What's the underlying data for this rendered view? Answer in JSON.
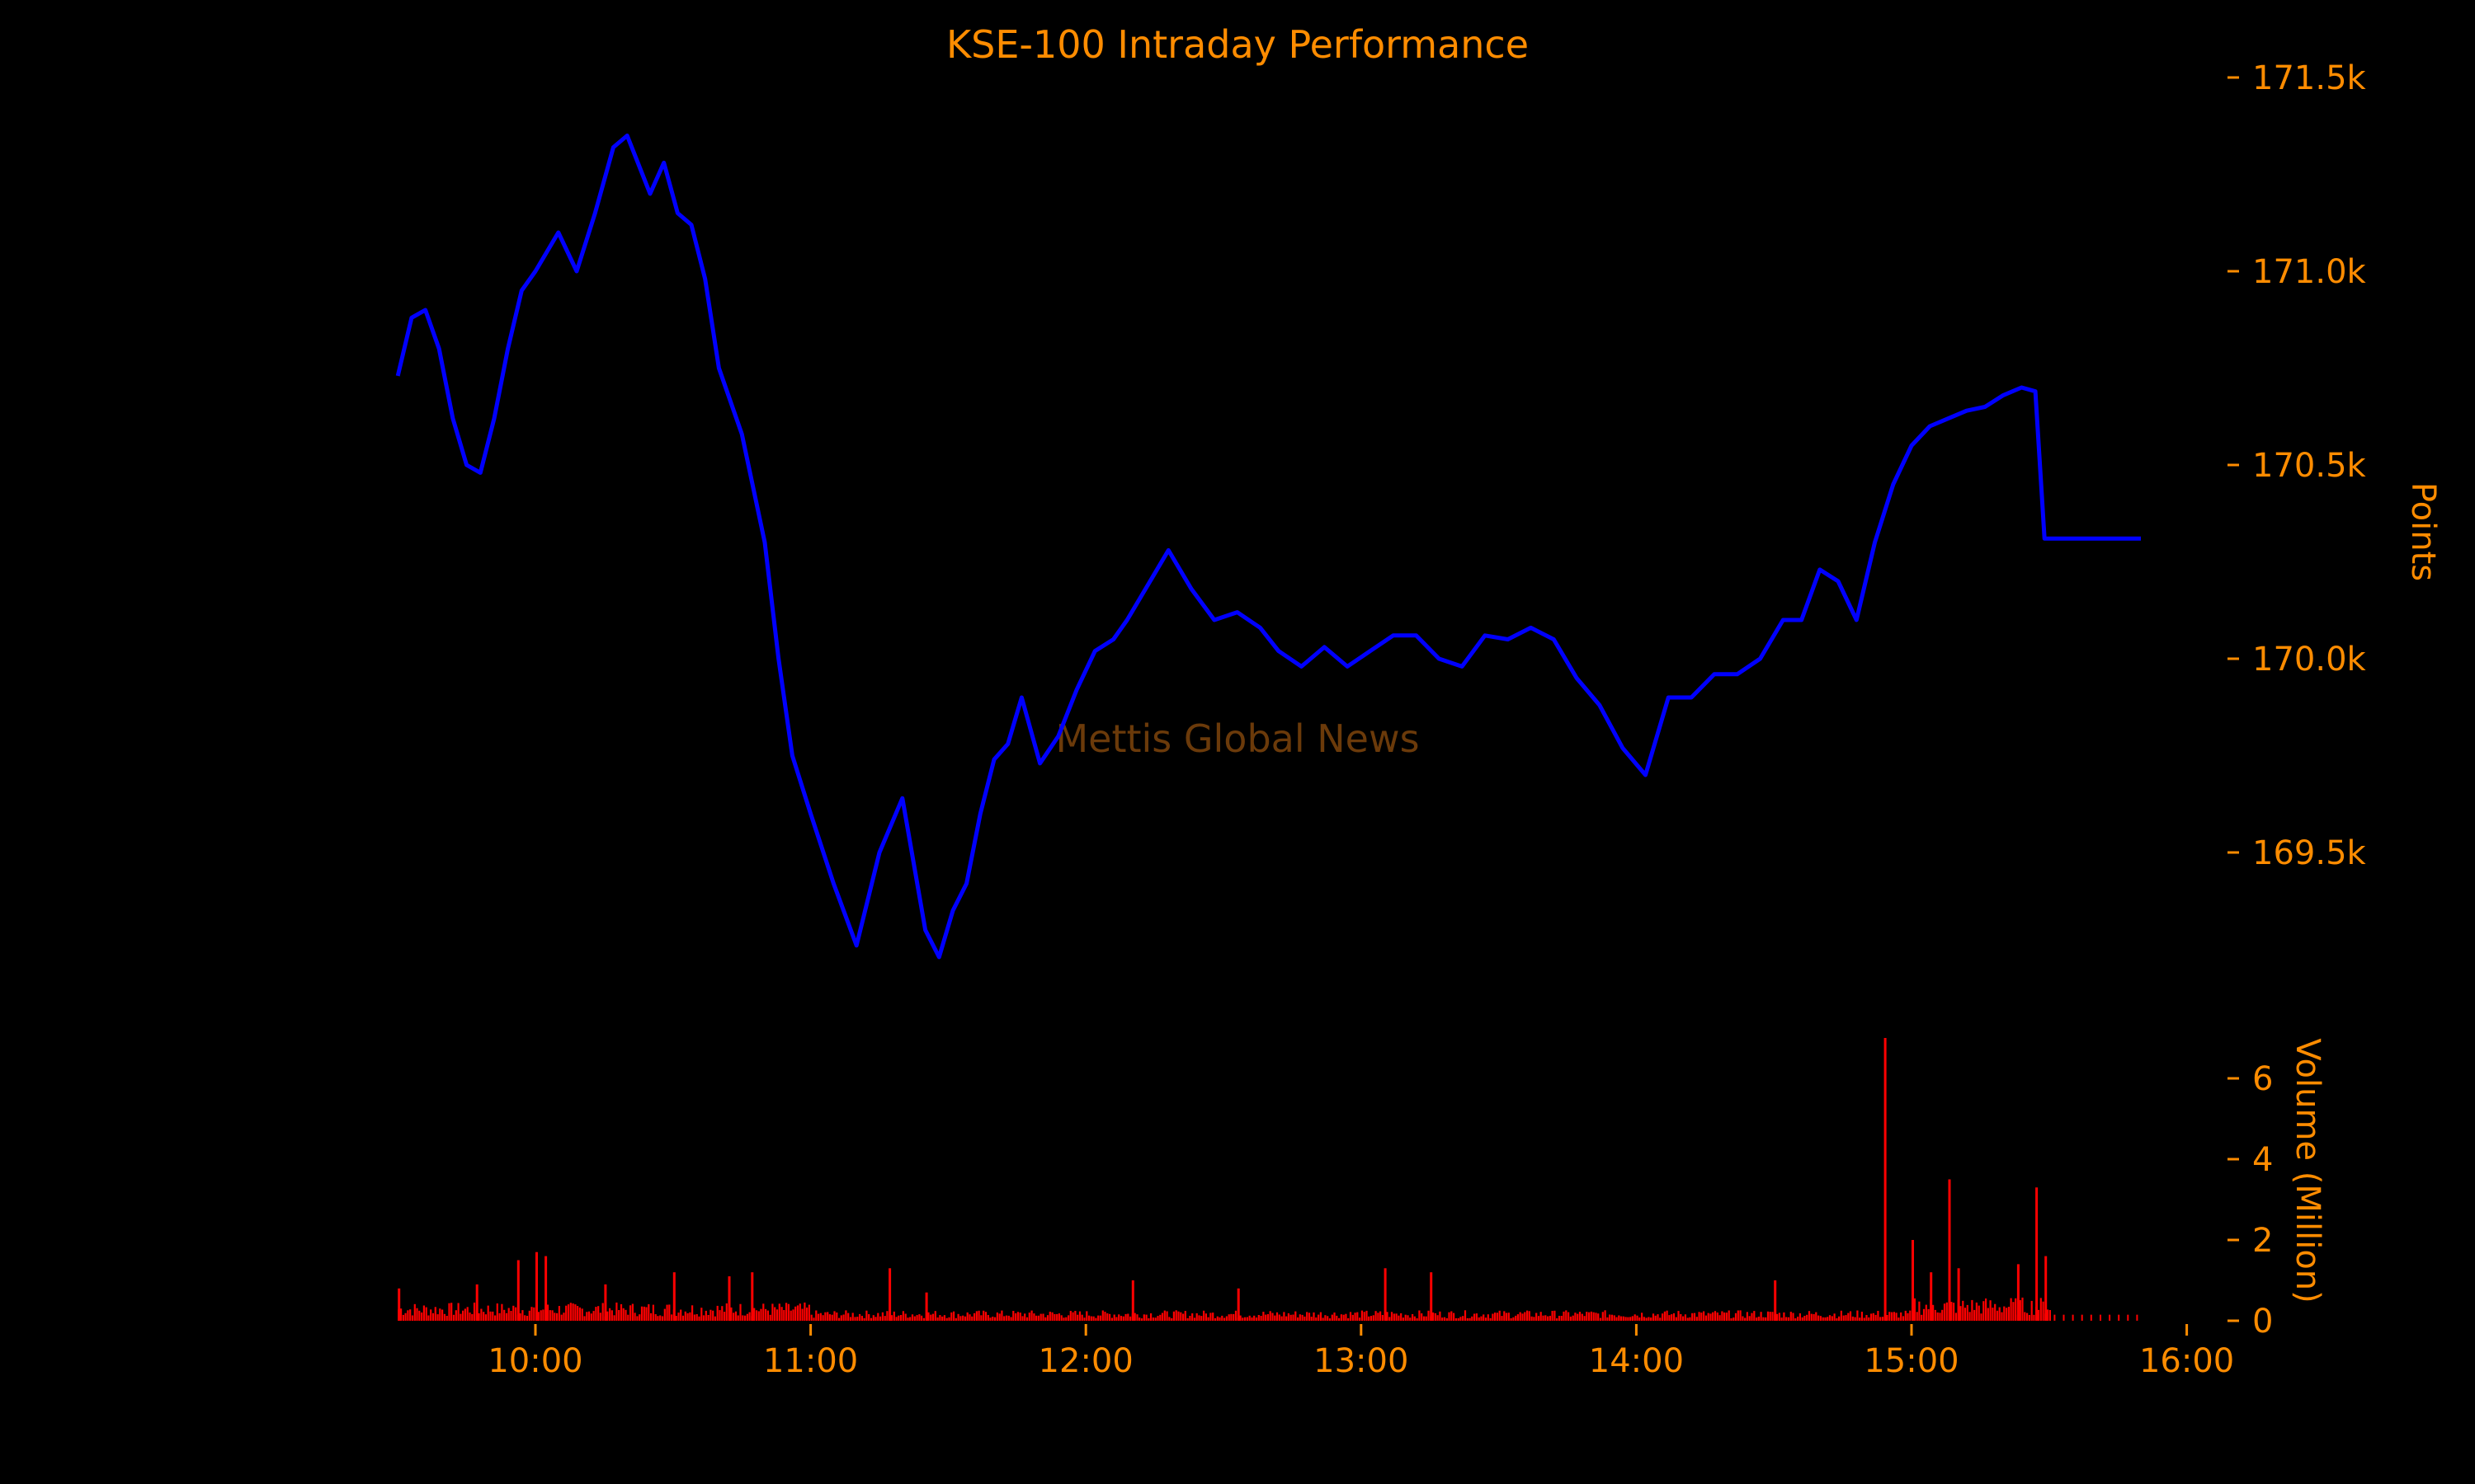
{
  "colors": {
    "background": "#000000",
    "text": "#FF8C00",
    "watermark": "#6B3A0A",
    "price_line": "#0000FF",
    "volume_bars": "#FF0000"
  },
  "watermark": "Mettis Global News",
  "chart_data": [
    {
      "type": "line",
      "title": "KSE-100 Intraday Performance",
      "ylabel": "Points",
      "ylim": [
        169200,
        171600
      ],
      "y_ticks": [
        169500,
        170000,
        170500,
        171000,
        171500
      ],
      "y_tick_labels": [
        "169.5k",
        "170.0k",
        "170.5k",
        "171.0k",
        "171.5k"
      ],
      "grid": false,
      "series": [
        {
          "x": [
            "09:30",
            "09:33",
            "09:36",
            "09:39",
            "09:42",
            "09:45",
            "09:48",
            "09:51",
            "09:54",
            "09:57",
            "10:00",
            "10:05",
            "10:09",
            "10:13",
            "10:17",
            "10:20",
            "10:23",
            "10:25",
            "10:28",
            "10:31",
            "10:34",
            "10:37",
            "10:40",
            "10:45",
            "10:50",
            "10:53",
            "10:56",
            "11:00",
            "11:05",
            "11:10",
            "11:15",
            "11:20",
            "11:25",
            "11:28",
            "11:31",
            "11:34",
            "11:37",
            "11:40",
            "11:43",
            "11:46",
            "11:50",
            "11:54",
            "11:58",
            "12:02",
            "12:06",
            "12:09",
            "12:13",
            "12:18",
            "12:23",
            "12:28",
            "12:33",
            "12:38",
            "12:42",
            "12:47",
            "12:52",
            "12:57",
            "13:02",
            "13:07",
            "13:12",
            "13:17",
            "13:22",
            "13:27",
            "13:32",
            "13:37",
            "13:42",
            "13:47",
            "13:52",
            "13:57",
            "14:02",
            "14:07",
            "14:12",
            "14:17",
            "14:22",
            "14:27",
            "14:32",
            "14:36",
            "14:40",
            "14:44",
            "14:48",
            "14:52",
            "14:56",
            "15:00",
            "15:04",
            "15:08",
            "15:12",
            "15:16",
            "15:20",
            "15:24",
            "15:27",
            "15:29",
            "15:30",
            "15:40",
            "15:50"
          ],
          "y": [
            170730,
            170880,
            170900,
            170800,
            170620,
            170500,
            170480,
            170620,
            170800,
            170950,
            171000,
            171100,
            171000,
            171150,
            171320,
            171350,
            171260,
            171200,
            171280,
            171150,
            171120,
            170980,
            170750,
            170580,
            170300,
            170000,
            169750,
            169600,
            169420,
            169260,
            169500,
            169640,
            169300,
            169230,
            169350,
            169420,
            169600,
            169740,
            169780,
            169900,
            169730,
            169800,
            169920,
            170020,
            170050,
            170100,
            170180,
            170280,
            170180,
            170100,
            170120,
            170080,
            170020,
            169980,
            170030,
            169980,
            170020,
            170060,
            170060,
            170000,
            169980,
            170060,
            170050,
            170080,
            170050,
            169950,
            169880,
            169770,
            169700,
            169900,
            169900,
            169960,
            169960,
            170000,
            170100,
            170100,
            170230,
            170200,
            170100,
            170300,
            170450,
            170550,
            170600,
            170620,
            170640,
            170650,
            170680,
            170700,
            170690,
            170310,
            170310,
            170310,
            170310
          ]
        }
      ]
    },
    {
      "type": "bar",
      "ylabel": "Volume (Million)",
      "ylim": [
        0,
        7.2
      ],
      "y_ticks": [
        0,
        2,
        4,
        6
      ],
      "y_tick_labels": [
        "0",
        "2",
        "4",
        "6"
      ],
      "x_ticks": [
        "10:00",
        "11:00",
        "12:00",
        "13:00",
        "14:00",
        "15:00",
        "16:00"
      ],
      "grid": false,
      "spikes": [
        {
          "x": "09:30",
          "value": 0.8
        },
        {
          "x": "09:47",
          "value": 0.9
        },
        {
          "x": "09:56",
          "value": 1.5
        },
        {
          "x": "10:00",
          "value": 1.7
        },
        {
          "x": "10:02",
          "value": 1.6
        },
        {
          "x": "10:15",
          "value": 0.9
        },
        {
          "x": "10:30",
          "value": 1.2
        },
        {
          "x": "10:42",
          "value": 1.1
        },
        {
          "x": "10:47",
          "value": 1.2
        },
        {
          "x": "11:17",
          "value": 1.3
        },
        {
          "x": "11:25",
          "value": 0.7
        },
        {
          "x": "12:10",
          "value": 1.0
        },
        {
          "x": "12:33",
          "value": 0.8
        },
        {
          "x": "13:05",
          "value": 1.3
        },
        {
          "x": "13:15",
          "value": 1.2
        },
        {
          "x": "14:30",
          "value": 1.0
        },
        {
          "x": "14:54",
          "value": 7.0
        },
        {
          "x": "15:00",
          "value": 2.0
        },
        {
          "x": "15:04",
          "value": 1.2
        },
        {
          "x": "15:08",
          "value": 3.5
        },
        {
          "x": "15:10",
          "value": 1.3
        },
        {
          "x": "15:23",
          "value": 1.4
        },
        {
          "x": "15:27",
          "value": 3.3
        },
        {
          "x": "15:29",
          "value": 1.6
        }
      ]
    }
  ]
}
